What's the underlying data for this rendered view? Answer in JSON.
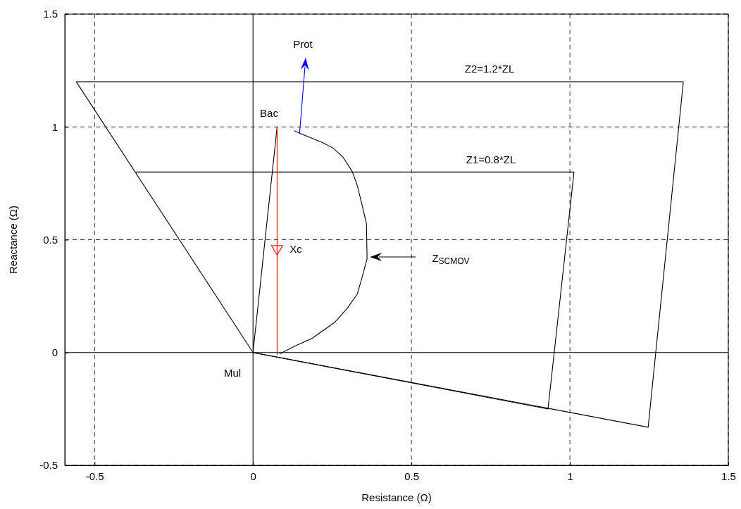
{
  "chart_data": {
    "type": "line",
    "xlabel": "Resistance (Ω)",
    "ylabel": "Reactance (Ω)",
    "xlim": [
      -0.594,
      1.5
    ],
    "ylim": [
      -0.5,
      1.5
    ],
    "xticks": [
      -0.5,
      0,
      0.5,
      1,
      1.5
    ],
    "yticks": [
      -0.5,
      0,
      0.5,
      1,
      1.5
    ],
    "grid": true,
    "line_style": "solid",
    "marker": "none",
    "series": [
      {
        "color": "#000000",
        "x": [
          -0.558,
          1.358
        ],
        "values": [
          1.2,
          1.2
        ]
      },
      {
        "color": "#000000",
        "x": [
          0,
          1.247,
          1.358
        ],
        "values": [
          0,
          -0.331,
          1.2
        ]
      },
      {
        "color": "#000000",
        "x": [
          -0.558,
          0
        ],
        "values": [
          1.2,
          0
        ]
      },
      {
        "color": "#000000",
        "x": [
          -0.371,
          1.013
        ],
        "values": [
          0.8,
          0.8
        ]
      },
      {
        "color": "#000000",
        "x": [
          0,
          0.931,
          1.013
        ],
        "values": [
          0,
          -0.25,
          0.8
        ]
      },
      {
        "color": "#000000",
        "x": [
          0,
          0.076
        ],
        "values": [
          0,
          1.0
        ]
      },
      {
        "color": "#ff0000",
        "x": [
          0.076,
          0.076
        ],
        "values": [
          1.0,
          -0.01
        ]
      },
      {
        "color": "#000000",
        "x": [
          0.129,
          0.147,
          0.18,
          0.218,
          0.253,
          0.284,
          0.313,
          0.329,
          0.342,
          0.358,
          0.36,
          0.342,
          0.329,
          0.298,
          0.258,
          0.187,
          0.136,
          0.084
        ],
        "values": [
          0.984,
          0.972,
          0.953,
          0.931,
          0.906,
          0.866,
          0.803,
          0.741,
          0.666,
          0.572,
          0.416,
          0.322,
          0.259,
          0.197,
          0.134,
          0.063,
          0.031,
          -0.006
        ]
      },
      {
        "color": "#000000",
        "x": [
          0,
          0
        ],
        "values": [
          -0.5,
          1.5
        ]
      },
      {
        "color": "#000000",
        "x": [
          -0.594,
          1.5
        ],
        "values": [
          0,
          0
        ]
      },
      {
        "type": "scatter",
        "marker": "triangle",
        "color": "#ff0000",
        "x": [
          0.076
        ],
        "values": [
          0.46
        ]
      }
    ],
    "annotations": [
      "Prot",
      "Z$_{SCMOV}$",
      "Bac",
      "Mul",
      "Xc",
      "Z2=1.2*ZL",
      "Z1=0.8*ZL"
    ]
  }
}
